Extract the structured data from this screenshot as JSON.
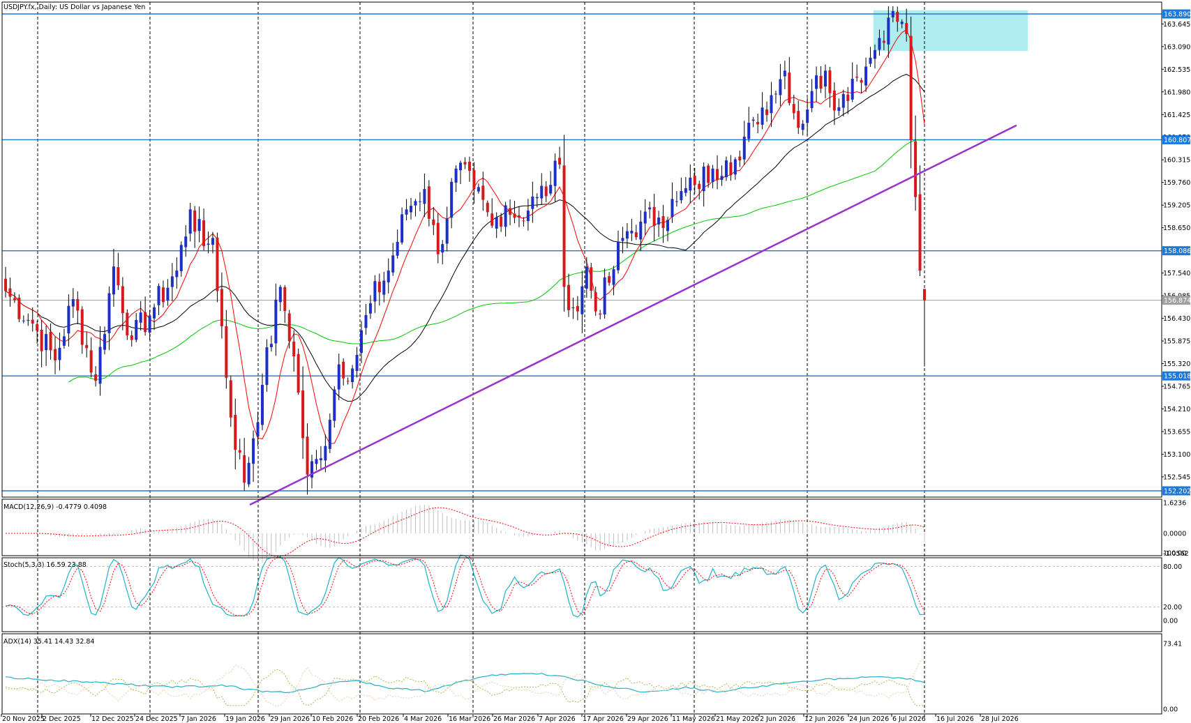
{
  "window": {
    "symbol": "USDJPY.fx",
    "timeframe": "Daily",
    "description": "US Dollar vs Japanese Yen",
    "title": "USDJPY.fx, Daily:  US Dollar vs Japanese Yen"
  },
  "colors": {
    "up_candle": "#1c2fc7",
    "down_candle": "#d7191c",
    "ma_fast": "#ff0000",
    "ma_mid": "#000000",
    "ma_slow": "#00c800",
    "trendline": "#9932cc",
    "hline": "#1e78d6",
    "zone": "#aeeef0",
    "stoch_main": "#20b2c8",
    "stoch_signal": "#ff0000",
    "adx_main": "#20b2c8"
  },
  "chart_data": [
    {
      "type": "candlestick",
      "panel": "price",
      "title": "USDJPY.fx, Daily:  US Dollar vs Japanese Yen",
      "y_ticks": [
        "163.645",
        "163.090",
        "162.535",
        "161.980",
        "161.425",
        "160.870",
        "160.315",
        "159.760",
        "159.205",
        "158.650",
        "157.540",
        "156.985",
        "156.430",
        "155.875",
        "155.320",
        "154.765",
        "154.210",
        "153.655",
        "153.100",
        "152.545"
      ],
      "ylim": [
        151.9,
        164.0
      ],
      "price_labels": [
        "163.890",
        "160.807",
        "158.086",
        "156.874",
        "155.018",
        "152.202"
      ],
      "horizontal_levels": [
        163.89,
        160.807,
        158.086,
        155.018,
        152.202
      ],
      "current_price": 156.874,
      "zone": {
        "from": 162.98,
        "to": 163.98
      },
      "trendline": [
        {
          "date": "29 Jan 2026",
          "price": 151.86
        },
        {
          "date": "Aug 2026",
          "price": 161.16
        }
      ],
      "x_ticks": [
        "20 Nov 2025",
        "2 Dec 2025",
        "12 Dec 2025",
        "24 Dec 2025",
        "7 Jan 2026",
        "19 Jan 2026",
        "29 Jan 2026",
        "10 Feb 2026",
        "20 Feb 2026",
        "4 Mar 2026",
        "16 Mar 2026",
        "26 Mar 2026",
        "7 Apr 2026",
        "17 Apr 2026",
        "29 Apr 2026",
        "11 May 2026",
        "21 May 2026",
        "2 Jun 2026",
        "12 Jun 2026",
        "24 Jun 2026",
        "6 Jul 2026",
        "16 Jul 2026",
        "28 Jul 2026"
      ],
      "keypoints": [
        {
          "bar": 0,
          "close": 157.1
        },
        {
          "bar": 6,
          "close": 156.3
        },
        {
          "bar": 11,
          "close": 155.4
        },
        {
          "bar": 15,
          "close": 156.9
        },
        {
          "bar": 20,
          "close": 154.9
        },
        {
          "bar": 24,
          "close": 157.7
        },
        {
          "bar": 28,
          "close": 155.9
        },
        {
          "bar": 33,
          "close": 156.7
        },
        {
          "bar": 38,
          "close": 157.6
        },
        {
          "bar": 41,
          "close": 159.1
        },
        {
          "bar": 44,
          "close": 158.2
        },
        {
          "bar": 46,
          "close": 158.4
        },
        {
          "bar": 50,
          "close": 154.0
        },
        {
          "bar": 53,
          "close": 152.4
        },
        {
          "bar": 57,
          "close": 154.8
        },
        {
          "bar": 61,
          "close": 157.2
        },
        {
          "bar": 64,
          "close": 155.5
        },
        {
          "bar": 67,
          "close": 152.6
        },
        {
          "bar": 70,
          "close": 153.0
        },
        {
          "bar": 74,
          "close": 155.3
        },
        {
          "bar": 77,
          "close": 155.2
        },
        {
          "bar": 81,
          "close": 156.8
        },
        {
          "bar": 85,
          "close": 157.6
        },
        {
          "bar": 89,
          "close": 159.1
        },
        {
          "bar": 93,
          "close": 159.6
        },
        {
          "bar": 96,
          "close": 158.0
        },
        {
          "bar": 100,
          "close": 160.1
        },
        {
          "bar": 104,
          "close": 159.6
        },
        {
          "bar": 108,
          "close": 158.7
        },
        {
          "bar": 111,
          "close": 159.2
        },
        {
          "bar": 114,
          "close": 158.9
        },
        {
          "bar": 118,
          "close": 159.4
        },
        {
          "bar": 121,
          "close": 159.7
        },
        {
          "bar": 123,
          "close": 160.2
        },
        {
          "bar": 124,
          "close": 157.2
        },
        {
          "bar": 127,
          "close": 156.6
        },
        {
          "bar": 129,
          "close": 157.7
        },
        {
          "bar": 131,
          "close": 156.6
        },
        {
          "bar": 134,
          "close": 157.3
        },
        {
          "bar": 137,
          "close": 158.4
        },
        {
          "bar": 141,
          "close": 158.8
        },
        {
          "bar": 145,
          "close": 158.9
        },
        {
          "bar": 149,
          "close": 159.3
        },
        {
          "bar": 153,
          "close": 159.7
        },
        {
          "bar": 157,
          "close": 160.1
        },
        {
          "bar": 160,
          "close": 160.3
        },
        {
          "bar": 163,
          "close": 160.3
        },
        {
          "bar": 166,
          "close": 161.3
        },
        {
          "bar": 170,
          "close": 161.9
        },
        {
          "bar": 173,
          "close": 162.5
        },
        {
          "bar": 176,
          "close": 161.1
        },
        {
          "bar": 179,
          "close": 162.0
        },
        {
          "bar": 182,
          "close": 162.5
        },
        {
          "bar": 185,
          "close": 161.6
        },
        {
          "bar": 188,
          "close": 162.3
        },
        {
          "bar": 191,
          "close": 162.6
        },
        {
          "bar": 194,
          "close": 163.3
        },
        {
          "bar": 196,
          "close": 163.8
        },
        {
          "bar": 199,
          "close": 163.7
        },
        {
          "bar": 200,
          "close": 163.4
        },
        {
          "bar": 201,
          "close": 160.8
        },
        {
          "bar": 202,
          "close": 159.4
        },
        {
          "bar": 203,
          "close": 157.6
        },
        {
          "bar": 204,
          "close": 156.87
        }
      ],
      "last_bar": {
        "open": 157.15,
        "high": 157.15,
        "low": 155.25,
        "close": 156.874
      }
    },
    {
      "type": "histogram",
      "panel": "macd",
      "label": "MACD(12,26,9) -0.4779 0.4098",
      "y_ticks": [
        "1.6236",
        "0.0000",
        "-1.0562"
      ],
      "ylim": [
        -1.25,
        1.8
      ]
    },
    {
      "type": "line",
      "panel": "stochastic",
      "label": "Stoch(5,3,3) 16.59 23.88",
      "y_ticks": [
        "100.00",
        "80.00",
        "20.00",
        "0.00"
      ],
      "ylim": [
        0,
        100
      ],
      "levels": [
        80,
        20
      ]
    },
    {
      "type": "line",
      "panel": "adx",
      "label": "ADX(14) 35.41 14.43 32.84",
      "y_ticks": [
        "73.41",
        "0.00"
      ],
      "ylim": [
        0,
        73.41
      ]
    }
  ]
}
